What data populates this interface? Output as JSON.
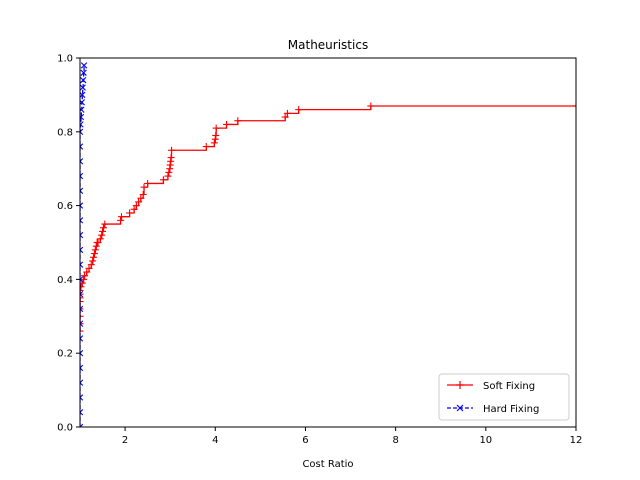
{
  "chart_data": {
    "type": "line",
    "title": "Matheuristics",
    "xlabel": "Cost Ratio",
    "ylabel": "",
    "xlim": [
      1,
      12
    ],
    "ylim": [
      0,
      1
    ],
    "xticks": [
      2,
      4,
      6,
      8,
      10,
      12
    ],
    "yticks": [
      0.0,
      0.2,
      0.4,
      0.6,
      0.8,
      1.0
    ],
    "grid": false,
    "legend_position": "lower-right",
    "series": [
      {
        "name": "Soft Fixing",
        "color": "#ff0000",
        "linestyle": "solid",
        "marker": "plus",
        "step": true,
        "x": [
          1.0,
          1.0,
          1.0,
          1.0,
          1.0,
          1.0,
          1.0,
          1.0,
          1.02,
          1.05,
          1.08,
          1.1,
          1.15,
          1.2,
          1.25,
          1.28,
          1.3,
          1.32,
          1.34,
          1.36,
          1.38,
          1.4,
          1.45,
          1.48,
          1.5,
          1.52,
          1.55,
          1.9,
          1.92,
          2.1,
          2.2,
          2.25,
          2.3,
          2.35,
          2.4,
          2.42,
          2.5,
          2.85,
          2.95,
          2.97,
          2.99,
          3.0,
          3.01,
          3.02,
          3.03,
          3.8,
          3.98,
          4.0,
          4.01,
          4.02,
          4.25,
          4.5,
          5.55,
          5.6,
          5.85,
          7.45,
          12.0
        ],
        "y": [
          0.26,
          0.28,
          0.3,
          0.32,
          0.34,
          0.35,
          0.36,
          0.37,
          0.38,
          0.39,
          0.4,
          0.41,
          0.42,
          0.43,
          0.44,
          0.45,
          0.46,
          0.47,
          0.48,
          0.49,
          0.5,
          0.5,
          0.51,
          0.52,
          0.53,
          0.54,
          0.55,
          0.56,
          0.57,
          0.58,
          0.59,
          0.6,
          0.61,
          0.62,
          0.63,
          0.65,
          0.66,
          0.67,
          0.68,
          0.69,
          0.7,
          0.71,
          0.72,
          0.73,
          0.75,
          0.76,
          0.77,
          0.78,
          0.79,
          0.81,
          0.82,
          0.83,
          0.84,
          0.85,
          0.86,
          0.87,
          0.87
        ]
      },
      {
        "name": "Hard Fixing",
        "color": "#0000ff",
        "linestyle": "dashed",
        "marker": "x",
        "step": true,
        "x": [
          1.0,
          1.0,
          1.0,
          1.0,
          1.0,
          1.0,
          1.0,
          1.0,
          1.0,
          1.0,
          1.0,
          1.0,
          1.0,
          1.0,
          1.0,
          1.0,
          1.0,
          1.0,
          1.0,
          1.0,
          1.0,
          1.01,
          1.02,
          1.03,
          1.04,
          1.05,
          1.06,
          1.07,
          1.08,
          1.09
        ],
        "y": [
          0.0,
          0.04,
          0.08,
          0.12,
          0.16,
          0.2,
          0.24,
          0.28,
          0.32,
          0.36,
          0.4,
          0.44,
          0.48,
          0.52,
          0.56,
          0.6,
          0.64,
          0.68,
          0.72,
          0.76,
          0.8,
          0.82,
          0.84,
          0.86,
          0.88,
          0.9,
          0.92,
          0.94,
          0.96,
          0.98
        ]
      }
    ]
  }
}
